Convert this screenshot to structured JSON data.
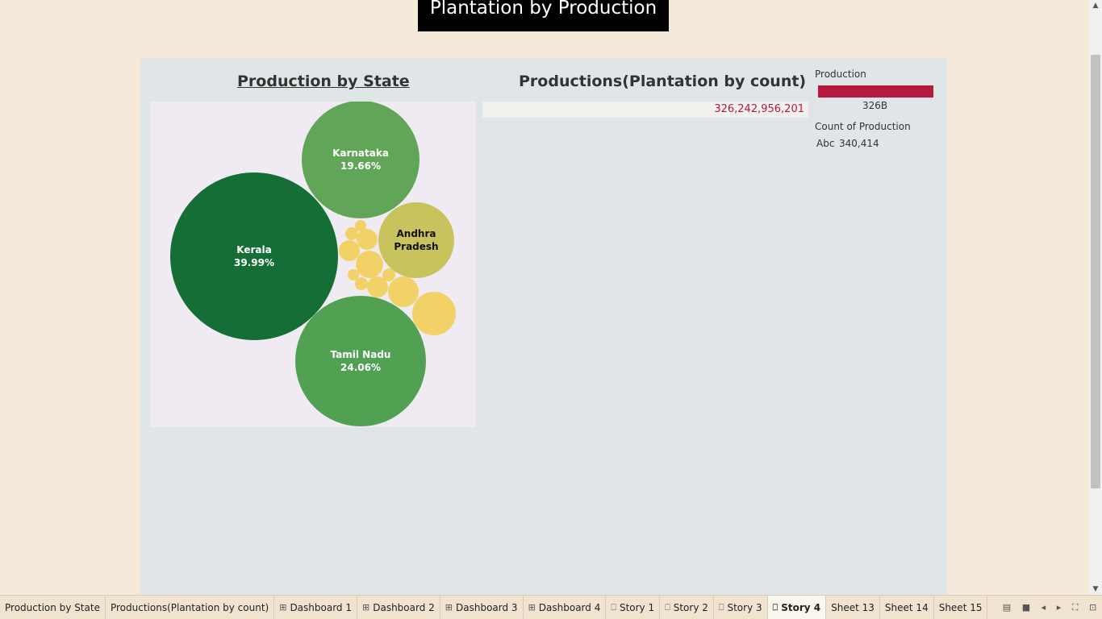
{
  "story": {
    "title": "Plantation by Production"
  },
  "left_sheet": {
    "title": "Production by State"
  },
  "right_sheet": {
    "title": "Productions(Plantation by count)",
    "value": "326,242,956,201"
  },
  "legend": {
    "production_title": "Production",
    "production_tick": "326B",
    "production_color": "#b5193f",
    "count_title": "Count of Production",
    "count_icon": "Abc",
    "count_value": "340,414"
  },
  "chart_data": {
    "type": "packed-bubble",
    "title": "Production by State",
    "labeled": [
      {
        "name": "Kerala",
        "pct": "39.99%",
        "share": 39.99,
        "color": "#156e36"
      },
      {
        "name": "Tamil Nadu",
        "pct": "24.06%",
        "share": 24.06,
        "color": "#52a052"
      },
      {
        "name": "Karnataka",
        "pct": "19.66%",
        "share": 19.66,
        "color": "#61a658"
      },
      {
        "name": "Andhra Pradesh",
        "pct": "",
        "share": 12.0,
        "color": "#c9c35e"
      }
    ],
    "small_bubble_color": "#f2d167"
  },
  "tabs": [
    {
      "label": "Production by State",
      "icon": ""
    },
    {
      "label": "Productions(Plantation by count)",
      "icon": ""
    },
    {
      "label": "Dashboard 1",
      "icon": "dashboard-icon"
    },
    {
      "label": "Dashboard 2",
      "icon": "dashboard-icon"
    },
    {
      "label": "Dashboard 3",
      "icon": "dashboard-icon"
    },
    {
      "label": "Dashboard 4",
      "icon": "dashboard-icon"
    },
    {
      "label": "Story 1",
      "icon": "story-icon"
    },
    {
      "label": "Story 2",
      "icon": "story-icon"
    },
    {
      "label": "Story 3",
      "icon": "story-icon"
    },
    {
      "label": "Story 4",
      "icon": "story-icon",
      "active": true
    },
    {
      "label": "Sheet 13",
      "icon": ""
    },
    {
      "label": "Sheet 14",
      "icon": ""
    },
    {
      "label": "Sheet 15",
      "icon": ""
    }
  ]
}
